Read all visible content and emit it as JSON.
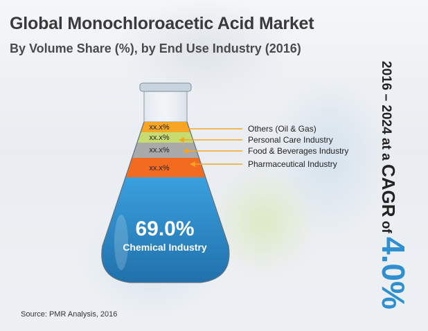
{
  "title": "Global Monochloroacetic Acid Market",
  "subtitle": "By Volume Share (%), by End Use Industry (2016)",
  "source": "Source: PMR Analysis, 2016",
  "cagr": {
    "period": "2016 – 2024",
    "at_a": "at a",
    "label": "CAGR",
    "of": "of",
    "value": "4.0%"
  },
  "chart_data": {
    "type": "bar",
    "title": "Global Monochloroacetic Acid Market",
    "subtitle": "By Volume Share (%), by End Use Industry (2016)",
    "segments": [
      {
        "name": "Others (Oil & Gas)",
        "label": "xx.x%",
        "color": "#f6a623"
      },
      {
        "name": "Personal Care Industry",
        "label": "xx.x%",
        "color": "#c7dc70"
      },
      {
        "name": "Food & Beverages Industry",
        "label": "xx.x%",
        "color": "#a9a9a9"
      },
      {
        "name": "Pharmaceutical Industry",
        "label": "xx.x%",
        "color": "#f26b21"
      },
      {
        "name": "Chemical Industry",
        "label": "69.0%",
        "value": 69.0,
        "color": "#2f8fcf"
      }
    ],
    "callout_color": "#f6a623"
  }
}
